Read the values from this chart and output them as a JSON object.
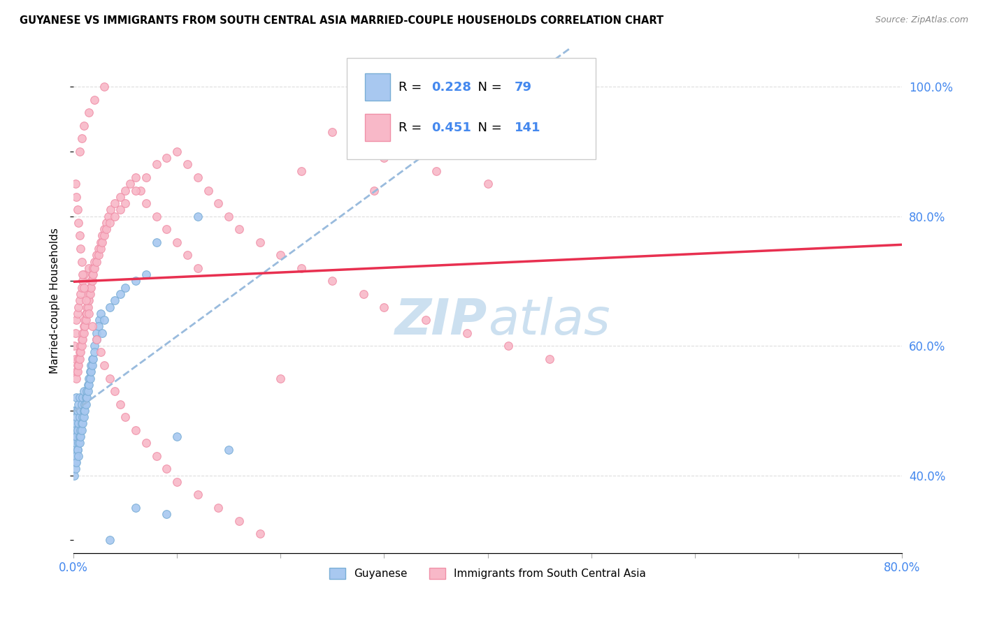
{
  "title": "GUYANESE VS IMMIGRANTS FROM SOUTH CENTRAL ASIA MARRIED-COUPLE HOUSEHOLDS CORRELATION CHART",
  "source": "Source: ZipAtlas.com",
  "ylabel": "Married-couple Households",
  "xlim": [
    0.0,
    0.8
  ],
  "ylim": [
    0.28,
    1.06
  ],
  "legend1_label": "Guyanese",
  "legend2_label": "Immigrants from South Central Asia",
  "R1": 0.228,
  "N1": 79,
  "R2": 0.451,
  "N2": 141,
  "color_blue_face": "#a8c8f0",
  "color_blue_edge": "#7aaed6",
  "color_blue_line": "#8ab4d8",
  "color_pink_face": "#f8b8c8",
  "color_pink_edge": "#f090a8",
  "color_pink_line": "#e8304858",
  "color_axis_text": "#4488ee",
  "watermark_color": "#cce0f0",
  "background": "#ffffff",
  "grid_color": "#dddddd",
  "scatter1_x": [
    0.001,
    0.001,
    0.001,
    0.001,
    0.002,
    0.002,
    0.002,
    0.002,
    0.003,
    0.003,
    0.003,
    0.003,
    0.004,
    0.004,
    0.004,
    0.005,
    0.005,
    0.005,
    0.006,
    0.006,
    0.006,
    0.007,
    0.007,
    0.008,
    0.008,
    0.009,
    0.009,
    0.01,
    0.01,
    0.011,
    0.012,
    0.013,
    0.014,
    0.015,
    0.016,
    0.017,
    0.018,
    0.02,
    0.022,
    0.025,
    0.001,
    0.002,
    0.002,
    0.003,
    0.004,
    0.005,
    0.006,
    0.007,
    0.008,
    0.009,
    0.01,
    0.011,
    0.012,
    0.013,
    0.014,
    0.015,
    0.016,
    0.017,
    0.018,
    0.019,
    0.02,
    0.022,
    0.024,
    0.026,
    0.028,
    0.03,
    0.035,
    0.04,
    0.045,
    0.05,
    0.06,
    0.07,
    0.08,
    0.09,
    0.1,
    0.12,
    0.15,
    0.06,
    0.035
  ],
  "scatter1_y": [
    0.44,
    0.46,
    0.48,
    0.5,
    0.42,
    0.45,
    0.47,
    0.5,
    0.43,
    0.46,
    0.49,
    0.52,
    0.44,
    0.47,
    0.5,
    0.45,
    0.48,
    0.51,
    0.46,
    0.49,
    0.52,
    0.47,
    0.5,
    0.48,
    0.51,
    0.49,
    0.52,
    0.5,
    0.53,
    0.51,
    0.52,
    0.53,
    0.54,
    0.55,
    0.56,
    0.57,
    0.58,
    0.6,
    0.62,
    0.64,
    0.4,
    0.41,
    0.43,
    0.42,
    0.44,
    0.43,
    0.45,
    0.46,
    0.47,
    0.48,
    0.49,
    0.5,
    0.51,
    0.52,
    0.53,
    0.54,
    0.55,
    0.56,
    0.57,
    0.58,
    0.59,
    0.61,
    0.63,
    0.65,
    0.62,
    0.64,
    0.66,
    0.67,
    0.68,
    0.69,
    0.7,
    0.71,
    0.76,
    0.34,
    0.46,
    0.8,
    0.44,
    0.35,
    0.3
  ],
  "scatter2_x": [
    0.001,
    0.002,
    0.002,
    0.003,
    0.003,
    0.004,
    0.004,
    0.005,
    0.005,
    0.006,
    0.006,
    0.007,
    0.007,
    0.008,
    0.008,
    0.009,
    0.009,
    0.01,
    0.01,
    0.011,
    0.012,
    0.013,
    0.014,
    0.015,
    0.015,
    0.016,
    0.017,
    0.018,
    0.019,
    0.02,
    0.022,
    0.024,
    0.026,
    0.028,
    0.03,
    0.032,
    0.034,
    0.036,
    0.04,
    0.045,
    0.05,
    0.055,
    0.06,
    0.065,
    0.07,
    0.08,
    0.09,
    0.1,
    0.11,
    0.12,
    0.003,
    0.004,
    0.005,
    0.006,
    0.007,
    0.008,
    0.009,
    0.01,
    0.011,
    0.012,
    0.013,
    0.014,
    0.015,
    0.016,
    0.017,
    0.018,
    0.019,
    0.02,
    0.022,
    0.024,
    0.026,
    0.028,
    0.03,
    0.032,
    0.035,
    0.04,
    0.045,
    0.05,
    0.06,
    0.07,
    0.08,
    0.09,
    0.1,
    0.11,
    0.12,
    0.13,
    0.14,
    0.15,
    0.16,
    0.18,
    0.2,
    0.22,
    0.25,
    0.28,
    0.3,
    0.34,
    0.38,
    0.42,
    0.46,
    0.002,
    0.003,
    0.004,
    0.005,
    0.006,
    0.007,
    0.008,
    0.009,
    0.01,
    0.012,
    0.015,
    0.018,
    0.022,
    0.026,
    0.03,
    0.035,
    0.04,
    0.045,
    0.05,
    0.06,
    0.07,
    0.08,
    0.09,
    0.1,
    0.12,
    0.14,
    0.16,
    0.18,
    0.2,
    0.22,
    0.25,
    0.28,
    0.3,
    0.35,
    0.4,
    0.03,
    0.02,
    0.015,
    0.01,
    0.008,
    0.006,
    0.29
  ],
  "scatter2_y": [
    0.6,
    0.58,
    0.62,
    0.56,
    0.64,
    0.57,
    0.65,
    0.58,
    0.66,
    0.59,
    0.67,
    0.6,
    0.68,
    0.61,
    0.69,
    0.62,
    0.7,
    0.63,
    0.71,
    0.64,
    0.65,
    0.66,
    0.67,
    0.68,
    0.72,
    0.69,
    0.7,
    0.71,
    0.72,
    0.73,
    0.74,
    0.75,
    0.76,
    0.77,
    0.78,
    0.79,
    0.8,
    0.81,
    0.82,
    0.83,
    0.84,
    0.85,
    0.86,
    0.84,
    0.82,
    0.8,
    0.78,
    0.76,
    0.74,
    0.72,
    0.55,
    0.56,
    0.57,
    0.58,
    0.59,
    0.6,
    0.61,
    0.62,
    0.63,
    0.64,
    0.65,
    0.66,
    0.67,
    0.68,
    0.69,
    0.7,
    0.71,
    0.72,
    0.73,
    0.74,
    0.75,
    0.76,
    0.77,
    0.78,
    0.79,
    0.8,
    0.81,
    0.82,
    0.84,
    0.86,
    0.88,
    0.89,
    0.9,
    0.88,
    0.86,
    0.84,
    0.82,
    0.8,
    0.78,
    0.76,
    0.74,
    0.72,
    0.7,
    0.68,
    0.66,
    0.64,
    0.62,
    0.6,
    0.58,
    0.85,
    0.83,
    0.81,
    0.79,
    0.77,
    0.75,
    0.73,
    0.71,
    0.69,
    0.67,
    0.65,
    0.63,
    0.61,
    0.59,
    0.57,
    0.55,
    0.53,
    0.51,
    0.49,
    0.47,
    0.45,
    0.43,
    0.41,
    0.39,
    0.37,
    0.35,
    0.33,
    0.31,
    0.55,
    0.87,
    0.93,
    0.91,
    0.89,
    0.87,
    0.85,
    1.0,
    0.98,
    0.96,
    0.94,
    0.92,
    0.9,
    0.84
  ]
}
